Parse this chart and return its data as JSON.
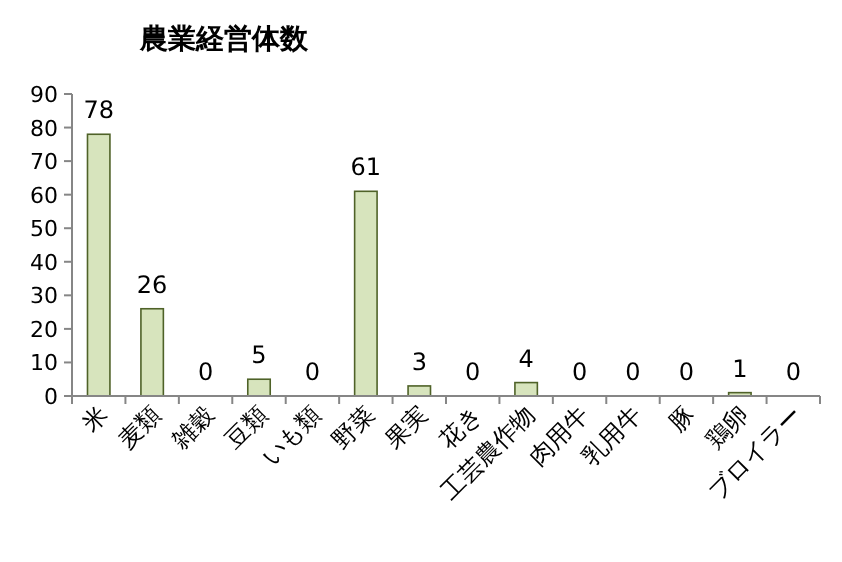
{
  "chart_data": {
    "type": "bar",
    "title": "農業経営体数",
    "categories": [
      "米",
      "麦類",
      "雑穀",
      "豆類",
      "いも類",
      "野菜",
      "果実",
      "花き",
      "工芸農作物",
      "肉用牛",
      "乳用牛",
      "豚",
      "鶏卵",
      "ブロイラー"
    ],
    "values": [
      78,
      26,
      0,
      5,
      0,
      61,
      3,
      0,
      4,
      0,
      0,
      0,
      1,
      0
    ],
    "color": "#d7e4bd",
    "ylim": [
      0,
      90
    ],
    "yticks": [
      0,
      10,
      20,
      30,
      40,
      50,
      60,
      70,
      80,
      90
    ],
    "data_labels": true,
    "grid": false
  }
}
